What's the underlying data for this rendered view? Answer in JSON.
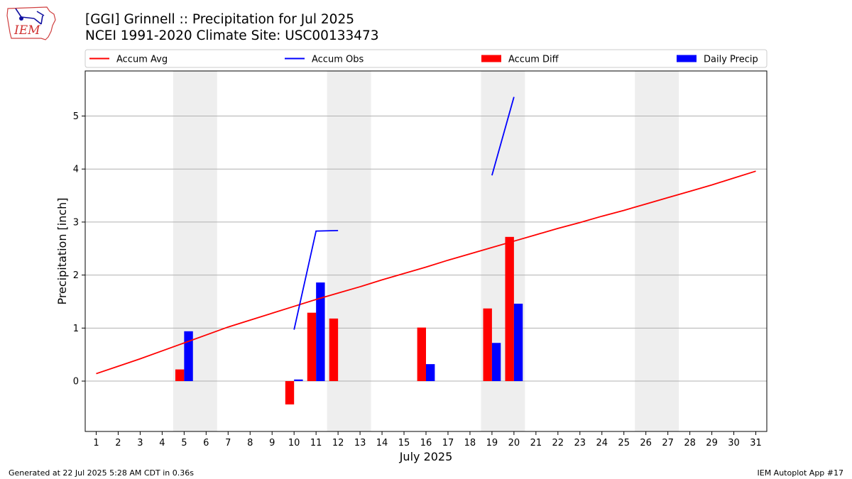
{
  "header": {
    "title_line1": "[GGI] Grinnell :: Precipitation for Jul 2025",
    "title_line2": "NCEI 1991-2020 Climate Site: USC00133473"
  },
  "logo": {
    "text": "IEM",
    "icon": "iem-iowa-logo"
  },
  "footer": {
    "generated": "Generated at 22 Jul 2025 5:28 AM CDT in 0.36s",
    "app": "IEM Autoplot App #17"
  },
  "chart_data": {
    "type": "bar",
    "xlabel": "July 2025",
    "ylabel": "Precipitation [inch]",
    "xlim": [
      0.5,
      31.5
    ],
    "ylim": [
      -0.95,
      5.85
    ],
    "x_ticks": [
      1,
      2,
      3,
      4,
      5,
      6,
      7,
      8,
      9,
      10,
      11,
      12,
      13,
      14,
      15,
      16,
      17,
      18,
      19,
      20,
      21,
      22,
      23,
      24,
      25,
      26,
      27,
      28,
      29,
      30,
      31
    ],
    "y_ticks": [
      0,
      1,
      2,
      3,
      4,
      5
    ],
    "grid": "horizontal",
    "legend": {
      "placement": "top",
      "entries": [
        {
          "label": "Accum Avg",
          "kind": "line",
          "color": "#ff0000"
        },
        {
          "label": "Accum Obs",
          "kind": "line",
          "color": "#0000ff"
        },
        {
          "label": "Accum Diff",
          "kind": "bar",
          "color": "#ff0000"
        },
        {
          "label": "Daily Precip",
          "kind": "bar",
          "color": "#0000ff"
        }
      ]
    },
    "weekend_shading": [
      [
        4.5,
        6.5
      ],
      [
        11.5,
        13.5
      ],
      [
        18.5,
        20.5
      ],
      [
        25.5,
        27.5
      ]
    ],
    "series": [
      {
        "name": "Accum Avg",
        "kind": "line",
        "color": "#ff0000",
        "x": [
          1,
          2,
          3,
          4,
          5,
          6,
          7,
          8,
          9,
          10,
          11,
          12,
          13,
          14,
          15,
          16,
          17,
          18,
          19,
          20,
          21,
          22,
          23,
          24,
          25,
          26,
          27,
          28,
          29,
          30,
          31
        ],
        "values": [
          0.14,
          0.28,
          0.42,
          0.57,
          0.72,
          0.87,
          1.02,
          1.15,
          1.28,
          1.41,
          1.54,
          1.66,
          1.78,
          1.91,
          2.03,
          2.15,
          2.28,
          2.4,
          2.52,
          2.64,
          2.76,
          2.88,
          2.99,
          3.11,
          3.22,
          3.34,
          3.46,
          3.58,
          3.7,
          3.83,
          3.96
        ]
      },
      {
        "name": "Accum Obs",
        "kind": "line",
        "color": "#0000ff",
        "segments": [
          {
            "x": [
              10,
              11,
              12
            ],
            "values": [
              0.97,
              2.83,
              2.84
            ]
          },
          {
            "x": [
              19,
              20
            ],
            "values": [
              3.88,
              5.36
            ]
          }
        ]
      },
      {
        "name": "Accum Diff",
        "kind": "bar",
        "color": "#ff0000",
        "x": [
          5,
          10,
          11,
          12,
          16,
          19,
          20
        ],
        "values": [
          0.22,
          -0.44,
          1.29,
          1.18,
          1.01,
          1.37,
          2.72
        ]
      },
      {
        "name": "Daily Precip",
        "kind": "bar",
        "color": "#0000ff",
        "x": [
          5,
          10,
          11,
          16,
          19,
          20
        ],
        "values": [
          0.94,
          0.03,
          1.86,
          0.32,
          0.72,
          1.46
        ]
      }
    ]
  }
}
